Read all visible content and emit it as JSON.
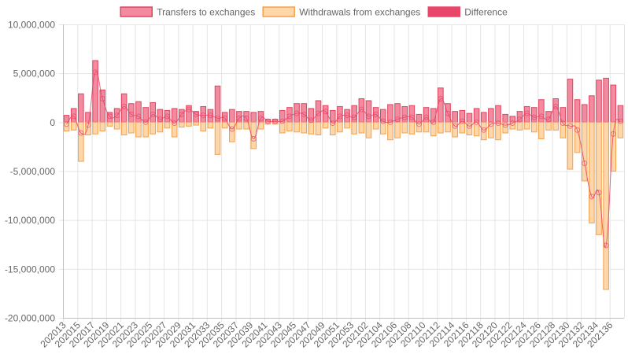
{
  "chart_data": {
    "type": "bar",
    "legend_position": "top-center",
    "colors": {
      "transfers_fill": "#f28aa0",
      "transfers_stroke": "#e0455f",
      "withdrawals_fill": "#fdd7aa",
      "withdrawals_stroke": "#f5a04a",
      "difference_fill": "#e8476a",
      "difference_line": "#e8476a",
      "grid": "#e5e5e5",
      "axis": "#bfbfbf"
    },
    "series": [
      {
        "name": "Transfers to exchanges",
        "kind": "bar",
        "values": [
          700000,
          1400000,
          2900000,
          1000000,
          6300000,
          3300000,
          1000000,
          1400000,
          2900000,
          1900000,
          2100000,
          1500000,
          2000000,
          1300000,
          1200000,
          1400000,
          1300000,
          1700000,
          1100000,
          1600000,
          1300000,
          3700000,
          1000000,
          1300000,
          1100000,
          1100000,
          1000000,
          1100000,
          300000,
          300000,
          1200000,
          1500000,
          1900000,
          1900000,
          1400000,
          2200000,
          1700000,
          1200000,
          1600000,
          1300000,
          1700000,
          2400000,
          2200000,
          1500000,
          1300000,
          1800000,
          1900000,
          1600000,
          1700000,
          800000,
          1500000,
          1400000,
          3500000,
          1900000,
          1100000,
          1200000,
          900000,
          1400000,
          1000000,
          1400000,
          1700000,
          800000,
          600000,
          1100000,
          1600000,
          1500000,
          2300000,
          1100000,
          2400000,
          1500000,
          4400000,
          2300000,
          1800000,
          2700000,
          4300000,
          4500000,
          3800000,
          1700000
        ]
      },
      {
        "name": "Withdrawals from exchanges",
        "kind": "bar",
        "values": [
          -900000,
          -800000,
          -4000000,
          -1300000,
          -1200000,
          -900000,
          -400000,
          -700000,
          -1300000,
          -1100000,
          -1500000,
          -1500000,
          -1200000,
          -1000000,
          -600000,
          -1500000,
          -500000,
          -400000,
          -300000,
          -900000,
          -600000,
          -3300000,
          -600000,
          -2000000,
          -700000,
          -700000,
          -2700000,
          -700000,
          -200000,
          -200000,
          -1100000,
          -900000,
          -1000000,
          -1100000,
          -1200000,
          -1300000,
          -600000,
          -1300000,
          -1000000,
          -600000,
          -1200000,
          -1100000,
          -1600000,
          -700000,
          -1200000,
          -1800000,
          -1600000,
          -1100000,
          -1200000,
          -1000000,
          -1000000,
          -1400000,
          -1100000,
          -1000000,
          -1500000,
          -1100000,
          -1300000,
          -1400000,
          -1800000,
          -1600000,
          -1800000,
          -1100000,
          -700000,
          -800000,
          -700000,
          -1000000,
          -1700000,
          -800000,
          -800000,
          -1600000,
          -4800000,
          -3100000,
          -6000000,
          -10300000,
          -11500000,
          -17100000,
          -5000000,
          -1600000
        ]
      },
      {
        "name": "Difference",
        "kind": "line",
        "values": [
          -200000,
          600000,
          -1100000,
          -300000,
          5100000,
          2400000,
          600000,
          700000,
          1600000,
          800000,
          600000,
          0,
          800000,
          300000,
          600000,
          -100000,
          800000,
          1300000,
          800000,
          700000,
          700000,
          400000,
          400000,
          -700000,
          400000,
          400000,
          -1700000,
          400000,
          100000,
          100000,
          100000,
          600000,
          900000,
          800000,
          200000,
          900000,
          1100000,
          -100000,
          600000,
          700000,
          500000,
          1300000,
          600000,
          800000,
          100000,
          0,
          300000,
          500000,
          500000,
          -200000,
          500000,
          0,
          2400000,
          900000,
          -400000,
          100000,
          -400000,
          0,
          -800000,
          -200000,
          -100000,
          -300000,
          -100000,
          300000,
          900000,
          500000,
          600000,
          300000,
          1600000,
          -100000,
          -400000,
          -800000,
          -4200000,
          -7600000,
          -7200000,
          -12600000,
          -1200000,
          100000
        ]
      }
    ],
    "categories": [
      "202013",
      "202014",
      "202015",
      "202016",
      "202017",
      "202018",
      "202019",
      "202020",
      "202021",
      "202022",
      "202023",
      "202024",
      "202025",
      "202026",
      "202027",
      "202028",
      "202029",
      "202030",
      "202031",
      "202032",
      "202033",
      "202034",
      "202035",
      "202036",
      "202037",
      "202038",
      "202039",
      "202040",
      "202041",
      "202042",
      "202043",
      "202044",
      "202045",
      "202046",
      "202047",
      "202048",
      "202049",
      "202050",
      "202051",
      "202052",
      "202053",
      "202101",
      "202102",
      "202103",
      "202104",
      "202105",
      "202106",
      "202107",
      "202108",
      "202109",
      "202110",
      "202111",
      "202112",
      "202113",
      "202114",
      "202115",
      "202116",
      "202117",
      "202118",
      "202119",
      "202120",
      "202121",
      "202122",
      "202123",
      "202124",
      "202125",
      "202126",
      "202127",
      "202128",
      "202129",
      "202130",
      "202131",
      "202132",
      "202133",
      "202134",
      "202135",
      "202136",
      "202137"
    ],
    "x_tick_labels": [
      "202013",
      "202015",
      "202017",
      "202019",
      "202021",
      "202023",
      "202025",
      "202027",
      "202029",
      "202031",
      "202033",
      "202035",
      "202037",
      "202039",
      "202041",
      "202043",
      "202045",
      "202047",
      "202049",
      "202051",
      "202053",
      "202102",
      "202104",
      "202106",
      "202108",
      "202110",
      "202112",
      "202114",
      "202116",
      "202118",
      "202120",
      "202122",
      "202124",
      "202126",
      "202128",
      "202130",
      "202132",
      "202134",
      "202136"
    ],
    "y_ticks": [
      {
        "value": 10000000,
        "label": "10,000,000"
      },
      {
        "value": 5000000,
        "label": "5,000,000"
      },
      {
        "value": 0,
        "label": "0"
      },
      {
        "value": -5000000,
        "label": "-5,000,000"
      },
      {
        "value": -10000000,
        "label": "-10,000,000"
      },
      {
        "value": -15000000,
        "label": "-15,000,000"
      },
      {
        "value": -20000000,
        "label": "-20,000,000"
      }
    ],
    "ylim": [
      -20000000,
      10000000
    ],
    "grid": true,
    "title": "",
    "xlabel": "",
    "ylabel": ""
  }
}
